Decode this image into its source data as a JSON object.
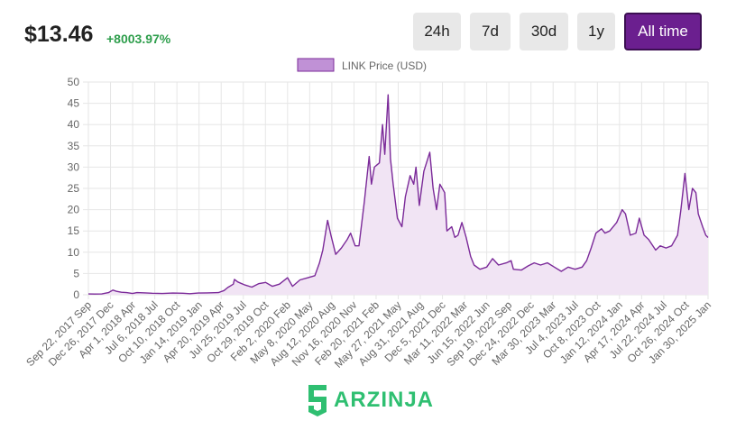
{
  "header": {
    "price": "$13.46",
    "change": "+8003.97%",
    "ranges": [
      {
        "label": "24h",
        "active": false
      },
      {
        "label": "7d",
        "active": false
      },
      {
        "label": "30d",
        "active": false
      },
      {
        "label": "1y",
        "active": false
      },
      {
        "label": "All time",
        "active": true
      }
    ]
  },
  "colors": {
    "line": "#7b2a99",
    "fill": "#f1e4f4",
    "legend_box": "#c091d6",
    "positive": "#2e9e4c",
    "active_button": "#6b1f8f",
    "watermark": "#2fbf71"
  },
  "watermark": {
    "text": "ARZINJA",
    "icon": "arzinja-logo-icon"
  },
  "chart_data": {
    "type": "area",
    "title": "",
    "xlabel": "",
    "ylabel": "",
    "ylim": [
      0,
      50
    ],
    "yticks": [
      0,
      5,
      10,
      15,
      20,
      25,
      30,
      35,
      40,
      45,
      50
    ],
    "grid": true,
    "legend": "top-center",
    "xtick_labels": [
      "Sep 22, 2017 Sep",
      "Dec 26, 2017 Dec",
      "Apr 1, 2018 Apr",
      "Jul 6, 2018 Jul",
      "Oct 10, 2018 Oct",
      "Jan 14, 2019 Jan",
      "Apr 20, 2019 Apr",
      "Jul 25, 2019 Jul",
      "Oct 29, 2019 Oct",
      "Feb 2, 2020 Feb",
      "May 8, 2020 May",
      "Aug 12, 2020 Aug",
      "Nov 16, 2020 Nov",
      "Feb 20, 2021 Feb",
      "May 27, 2021 May",
      "Aug 31, 2021 Aug",
      "Dec 5, 2021 Dec",
      "Mar 11, 2022 Mar",
      "Jun 15, 2022 Jun",
      "Sep 19, 2022 Sep",
      "Dec 24, 2022 Dec",
      "Mar 30, 2023 Mar",
      "Jul 4, 2023 Jul",
      "Oct 8, 2023 Oct",
      "Jan 12, 2024 Jan",
      "Apr 17, 2024 Apr",
      "Jul 22, 2024 Jul",
      "Oct 26, 2024 Oct",
      "Jan 30, 2025 Jan"
    ],
    "series": [
      {
        "name": "LINK Price (USD)",
        "points": [
          {
            "x": "2017-09-22",
            "y": 0.2
          },
          {
            "x": "2017-10-20",
            "y": 0.18
          },
          {
            "x": "2017-11-20",
            "y": 0.2
          },
          {
            "x": "2017-12-20",
            "y": 0.5
          },
          {
            "x": "2018-01-08",
            "y": 1.1
          },
          {
            "x": "2018-01-25",
            "y": 0.8
          },
          {
            "x": "2018-02-15",
            "y": 0.6
          },
          {
            "x": "2018-03-10",
            "y": 0.5
          },
          {
            "x": "2018-04-05",
            "y": 0.3
          },
          {
            "x": "2018-04-25",
            "y": 0.5
          },
          {
            "x": "2018-06-01",
            "y": 0.45
          },
          {
            "x": "2018-07-01",
            "y": 0.35
          },
          {
            "x": "2018-08-15",
            "y": 0.3
          },
          {
            "x": "2018-10-01",
            "y": 0.4
          },
          {
            "x": "2018-11-15",
            "y": 0.35
          },
          {
            "x": "2018-12-15",
            "y": 0.25
          },
          {
            "x": "2019-01-20",
            "y": 0.4
          },
          {
            "x": "2019-03-01",
            "y": 0.45
          },
          {
            "x": "2019-04-20",
            "y": 0.5
          },
          {
            "x": "2019-05-15",
            "y": 1.0
          },
          {
            "x": "2019-05-31",
            "y": 1.7
          },
          {
            "x": "2019-06-25",
            "y": 2.5
          },
          {
            "x": "2019-06-30",
            "y": 3.6
          },
          {
            "x": "2019-07-15",
            "y": 3.0
          },
          {
            "x": "2019-08-15",
            "y": 2.3
          },
          {
            "x": "2019-09-15",
            "y": 1.8
          },
          {
            "x": "2019-10-15",
            "y": 2.6
          },
          {
            "x": "2019-11-15",
            "y": 2.9
          },
          {
            "x": "2019-12-15",
            "y": 2.0
          },
          {
            "x": "2020-01-15",
            "y": 2.5
          },
          {
            "x": "2020-02-20",
            "y": 4.0
          },
          {
            "x": "2020-03-13",
            "y": 2.0
          },
          {
            "x": "2020-04-15",
            "y": 3.5
          },
          {
            "x": "2020-05-20",
            "y": 4.0
          },
          {
            "x": "2020-06-20",
            "y": 4.5
          },
          {
            "x": "2020-07-10",
            "y": 7.5
          },
          {
            "x": "2020-07-25",
            "y": 10.5
          },
          {
            "x": "2020-08-15",
            "y": 17.5
          },
          {
            "x": "2020-08-30",
            "y": 14.0
          },
          {
            "x": "2020-09-20",
            "y": 9.5
          },
          {
            "x": "2020-10-15",
            "y": 11.0
          },
          {
            "x": "2020-11-10",
            "y": 13.0
          },
          {
            "x": "2020-11-25",
            "y": 14.5
          },
          {
            "x": "2020-12-15",
            "y": 11.5
          },
          {
            "x": "2021-01-01",
            "y": 11.5
          },
          {
            "x": "2021-01-25",
            "y": 22.0
          },
          {
            "x": "2021-02-15",
            "y": 32.5
          },
          {
            "x": "2021-02-25",
            "y": 26.0
          },
          {
            "x": "2021-03-10",
            "y": 30.0
          },
          {
            "x": "2021-04-01",
            "y": 31.0
          },
          {
            "x": "2021-04-15",
            "y": 40.0
          },
          {
            "x": "2021-04-25",
            "y": 33.0
          },
          {
            "x": "2021-05-10",
            "y": 47.0
          },
          {
            "x": "2021-05-20",
            "y": 32.0
          },
          {
            "x": "2021-06-01",
            "y": 26.0
          },
          {
            "x": "2021-06-20",
            "y": 18.0
          },
          {
            "x": "2021-07-10",
            "y": 16.0
          },
          {
            "x": "2021-07-25",
            "y": 23.0
          },
          {
            "x": "2021-08-15",
            "y": 28.0
          },
          {
            "x": "2021-08-31",
            "y": 26.0
          },
          {
            "x": "2021-09-10",
            "y": 30.0
          },
          {
            "x": "2021-09-25",
            "y": 21.0
          },
          {
            "x": "2021-10-15",
            "y": 29.0
          },
          {
            "x": "2021-11-10",
            "y": 33.5
          },
          {
            "x": "2021-11-25",
            "y": 25.0
          },
          {
            "x": "2021-12-10",
            "y": 20.0
          },
          {
            "x": "2021-12-25",
            "y": 26.0
          },
          {
            "x": "2022-01-15",
            "y": 24.0
          },
          {
            "x": "2022-01-25",
            "y": 15.0
          },
          {
            "x": "2022-02-15",
            "y": 16.0
          },
          {
            "x": "2022-03-01",
            "y": 13.5
          },
          {
            "x": "2022-03-15",
            "y": 14.0
          },
          {
            "x": "2022-04-01",
            "y": 17.0
          },
          {
            "x": "2022-04-20",
            "y": 13.5
          },
          {
            "x": "2022-05-10",
            "y": 9.0
          },
          {
            "x": "2022-05-25",
            "y": 7.0
          },
          {
            "x": "2022-06-20",
            "y": 6.0
          },
          {
            "x": "2022-07-20",
            "y": 6.5
          },
          {
            "x": "2022-08-15",
            "y": 8.5
          },
          {
            "x": "2022-09-10",
            "y": 7.0
          },
          {
            "x": "2022-10-15",
            "y": 7.5
          },
          {
            "x": "2022-11-05",
            "y": 8.0
          },
          {
            "x": "2022-11-15",
            "y": 6.0
          },
          {
            "x": "2022-12-20",
            "y": 5.8
          },
          {
            "x": "2023-01-20",
            "y": 6.8
          },
          {
            "x": "2023-02-15",
            "y": 7.5
          },
          {
            "x": "2023-03-15",
            "y": 7.0
          },
          {
            "x": "2023-04-15",
            "y": 7.5
          },
          {
            "x": "2023-05-15",
            "y": 6.5
          },
          {
            "x": "2023-06-15",
            "y": 5.5
          },
          {
            "x": "2023-07-15",
            "y": 6.5
          },
          {
            "x": "2023-08-15",
            "y": 6.0
          },
          {
            "x": "2023-09-15",
            "y": 6.5
          },
          {
            "x": "2023-10-05",
            "y": 8.0
          },
          {
            "x": "2023-10-25",
            "y": 11.0
          },
          {
            "x": "2023-11-15",
            "y": 14.5
          },
          {
            "x": "2023-12-10",
            "y": 15.5
          },
          {
            "x": "2023-12-25",
            "y": 14.5
          },
          {
            "x": "2024-01-15",
            "y": 15.0
          },
          {
            "x": "2024-02-15",
            "y": 17.0
          },
          {
            "x": "2024-03-10",
            "y": 20.0
          },
          {
            "x": "2024-03-25",
            "y": 19.0
          },
          {
            "x": "2024-04-15",
            "y": 14.0
          },
          {
            "x": "2024-05-10",
            "y": 14.5
          },
          {
            "x": "2024-05-25",
            "y": 18.0
          },
          {
            "x": "2024-06-15",
            "y": 14.0
          },
          {
            "x": "2024-07-05",
            "y": 13.0
          },
          {
            "x": "2024-08-05",
            "y": 10.5
          },
          {
            "x": "2024-08-25",
            "y": 11.5
          },
          {
            "x": "2024-09-20",
            "y": 11.0
          },
          {
            "x": "2024-10-15",
            "y": 11.5
          },
          {
            "x": "2024-11-10",
            "y": 14.0
          },
          {
            "x": "2024-11-25",
            "y": 20.0
          },
          {
            "x": "2024-12-13",
            "y": 28.5
          },
          {
            "x": "2024-12-30",
            "y": 20.0
          },
          {
            "x": "2025-01-15",
            "y": 25.0
          },
          {
            "x": "2025-01-30",
            "y": 24.0
          },
          {
            "x": "2025-02-10",
            "y": 19.0
          },
          {
            "x": "2025-03-01",
            "y": 16.0
          },
          {
            "x": "2025-03-15",
            "y": 14.0
          },
          {
            "x": "2025-03-25",
            "y": 13.46
          }
        ]
      }
    ]
  }
}
